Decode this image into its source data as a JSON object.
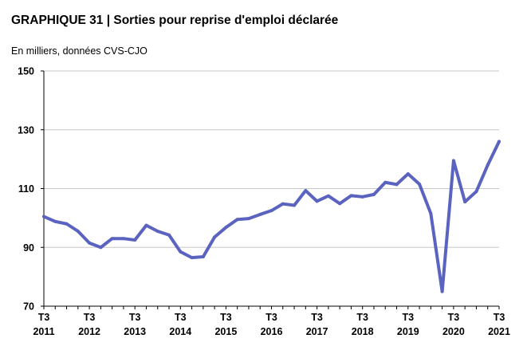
{
  "title": "GRAPHIQUE 31 | Sorties pour reprise d'emploi déclarée",
  "subtitle": "En milliers, données CVS-CJO",
  "chart_data": {
    "type": "line",
    "title": "GRAPHIQUE 31 | Sorties pour reprise d'emploi déclarée",
    "subtitle": "En milliers, données CVS-CJO",
    "xlabel": "",
    "ylabel": "",
    "ylim": [
      70,
      150
    ],
    "yticks": [
      70,
      90,
      110,
      130,
      150
    ],
    "grid": true,
    "legend": "none",
    "line_color": "#5b63c0",
    "x_tick_labels": [
      {
        "q": "T3",
        "year": "2011",
        "index": 0
      },
      {
        "q": "T3",
        "year": "2012",
        "index": 4
      },
      {
        "q": "T3",
        "year": "2013",
        "index": 8
      },
      {
        "q": "T3",
        "year": "2014",
        "index": 12
      },
      {
        "q": "T3",
        "year": "2015",
        "index": 16
      },
      {
        "q": "T3",
        "year": "2016",
        "index": 20
      },
      {
        "q": "T3",
        "year": "2017",
        "index": 24
      },
      {
        "q": "T3",
        "year": "2018",
        "index": 28
      },
      {
        "q": "T3",
        "year": "2019",
        "index": 32
      },
      {
        "q": "T3",
        "year": "2020",
        "index": 36
      },
      {
        "q": "T3",
        "year": "2021",
        "index": 40
      }
    ],
    "series": [
      {
        "values": [
          100.5,
          98.8,
          98.0,
          95.5,
          91.5,
          90.0,
          93.0,
          93.0,
          92.5,
          97.5,
          95.5,
          94.2,
          88.5,
          86.5,
          86.8,
          93.5,
          96.8,
          99.5,
          99.8,
          101.2,
          102.5,
          104.8,
          104.3,
          109.3,
          105.7,
          107.5,
          104.9,
          107.6,
          107.2,
          108.0,
          112.1,
          111.4,
          115.0,
          111.5,
          101.5,
          75.0,
          119.5,
          105.5,
          109.0,
          118.0,
          126.0
        ]
      }
    ]
  }
}
